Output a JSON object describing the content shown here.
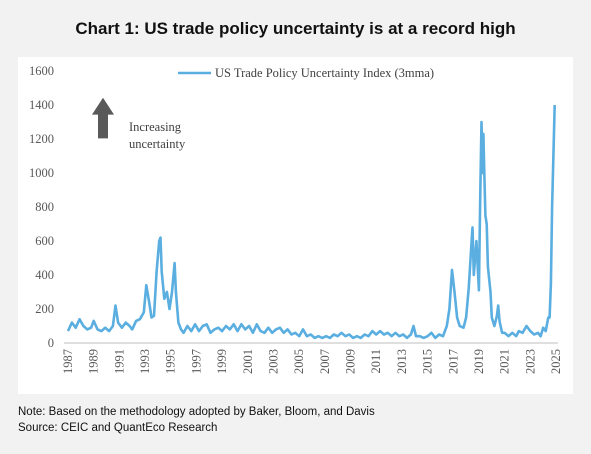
{
  "title": "Chart 1: US trade policy uncertainty is at a record high",
  "notes": {
    "line1": "Note: Based on the methodology adopted by Baker, Bloom, and Davis",
    "line2": "Source: CEIC and QuantEco Research"
  },
  "annotation": {
    "line1": "Increasing",
    "line2": "uncertainty"
  },
  "colors": {
    "series": "#5aaee0",
    "arrow": "#595959",
    "axis": "#bfbfbf",
    "text": "#595959"
  },
  "chart_data": {
    "type": "line",
    "title": "",
    "xlabel": "",
    "ylabel": "",
    "ylim": [
      0,
      1600
    ],
    "xlim": [
      1987,
      2025
    ],
    "grid": false,
    "legend_position": "top-center",
    "y_ticks": [
      "0",
      "200",
      "400",
      "600",
      "800",
      "1000",
      "1200",
      "1400",
      "1600"
    ],
    "x_ticks": [
      "1987",
      "1989",
      "1991",
      "1993",
      "1995",
      "1997",
      "1999",
      "2001",
      "2003",
      "2005",
      "2007",
      "2009",
      "2011",
      "2013",
      "2015",
      "2017",
      "2019",
      "2021",
      "2023",
      "2025"
    ],
    "series": [
      {
        "name": "US Trade Policy Uncertainty Index (3mma)",
        "points": [
          [
            1987.0,
            70
          ],
          [
            1987.3,
            120
          ],
          [
            1987.6,
            90
          ],
          [
            1987.9,
            140
          ],
          [
            1988.2,
            100
          ],
          [
            1988.5,
            80
          ],
          [
            1988.8,
            90
          ],
          [
            1989.0,
            130
          ],
          [
            1989.3,
            80
          ],
          [
            1989.6,
            70
          ],
          [
            1989.9,
            90
          ],
          [
            1990.2,
            70
          ],
          [
            1990.5,
            100
          ],
          [
            1990.7,
            220
          ],
          [
            1990.9,
            120
          ],
          [
            1991.2,
            90
          ],
          [
            1991.5,
            120
          ],
          [
            1991.8,
            100
          ],
          [
            1992.0,
            80
          ],
          [
            1992.3,
            130
          ],
          [
            1992.6,
            140
          ],
          [
            1992.9,
            180
          ],
          [
            1993.1,
            340
          ],
          [
            1993.3,
            250
          ],
          [
            1993.5,
            150
          ],
          [
            1993.7,
            160
          ],
          [
            1993.9,
            420
          ],
          [
            1994.1,
            600
          ],
          [
            1994.2,
            620
          ],
          [
            1994.3,
            420
          ],
          [
            1994.5,
            260
          ],
          [
            1994.7,
            300
          ],
          [
            1994.9,
            200
          ],
          [
            1995.1,
            300
          ],
          [
            1995.3,
            470
          ],
          [
            1995.4,
            300
          ],
          [
            1995.6,
            120
          ],
          [
            1995.8,
            80
          ],
          [
            1996.0,
            60
          ],
          [
            1996.3,
            100
          ],
          [
            1996.6,
            70
          ],
          [
            1996.9,
            110
          ],
          [
            1997.2,
            70
          ],
          [
            1997.5,
            100
          ],
          [
            1997.8,
            110
          ],
          [
            1998.1,
            60
          ],
          [
            1998.4,
            80
          ],
          [
            1998.7,
            90
          ],
          [
            1999.0,
            70
          ],
          [
            1999.3,
            100
          ],
          [
            1999.6,
            80
          ],
          [
            1999.9,
            110
          ],
          [
            2000.2,
            70
          ],
          [
            2000.5,
            110
          ],
          [
            2000.8,
            80
          ],
          [
            2001.1,
            100
          ],
          [
            2001.4,
            60
          ],
          [
            2001.7,
            110
          ],
          [
            2002.0,
            70
          ],
          [
            2002.3,
            60
          ],
          [
            2002.6,
            90
          ],
          [
            2002.9,
            60
          ],
          [
            2003.2,
            80
          ],
          [
            2003.5,
            90
          ],
          [
            2003.8,
            60
          ],
          [
            2004.1,
            80
          ],
          [
            2004.4,
            50
          ],
          [
            2004.7,
            60
          ],
          [
            2005.0,
            40
          ],
          [
            2005.3,
            80
          ],
          [
            2005.6,
            40
          ],
          [
            2005.9,
            50
          ],
          [
            2006.2,
            30
          ],
          [
            2006.5,
            40
          ],
          [
            2006.8,
            30
          ],
          [
            2007.1,
            40
          ],
          [
            2007.4,
            30
          ],
          [
            2007.7,
            50
          ],
          [
            2008.0,
            40
          ],
          [
            2008.3,
            60
          ],
          [
            2008.6,
            40
          ],
          [
            2008.9,
            50
          ],
          [
            2009.2,
            30
          ],
          [
            2009.5,
            40
          ],
          [
            2009.8,
            30
          ],
          [
            2010.1,
            50
          ],
          [
            2010.4,
            40
          ],
          [
            2010.7,
            70
          ],
          [
            2011.0,
            50
          ],
          [
            2011.3,
            70
          ],
          [
            2011.6,
            50
          ],
          [
            2011.9,
            60
          ],
          [
            2012.2,
            40
          ],
          [
            2012.5,
            60
          ],
          [
            2012.8,
            40
          ],
          [
            2013.1,
            50
          ],
          [
            2013.4,
            30
          ],
          [
            2013.7,
            50
          ],
          [
            2013.9,
            100
          ],
          [
            2014.1,
            40
          ],
          [
            2014.4,
            40
          ],
          [
            2014.7,
            30
          ],
          [
            2015.0,
            40
          ],
          [
            2015.3,
            60
          ],
          [
            2015.6,
            30
          ],
          [
            2015.9,
            50
          ],
          [
            2016.2,
            40
          ],
          [
            2016.5,
            100
          ],
          [
            2016.7,
            200
          ],
          [
            2016.9,
            430
          ],
          [
            2017.1,
            300
          ],
          [
            2017.3,
            150
          ],
          [
            2017.5,
            100
          ],
          [
            2017.8,
            90
          ],
          [
            2018.0,
            150
          ],
          [
            2018.2,
            320
          ],
          [
            2018.4,
            560
          ],
          [
            2018.5,
            680
          ],
          [
            2018.6,
            400
          ],
          [
            2018.8,
            600
          ],
          [
            2018.9,
            450
          ],
          [
            2019.0,
            310
          ],
          [
            2019.1,
            850
          ],
          [
            2019.2,
            1300
          ],
          [
            2019.3,
            1000
          ],
          [
            2019.35,
            1230
          ],
          [
            2019.4,
            1050
          ],
          [
            2019.5,
            750
          ],
          [
            2019.6,
            700
          ],
          [
            2019.7,
            450
          ],
          [
            2019.9,
            300
          ],
          [
            2020.0,
            150
          ],
          [
            2020.2,
            100
          ],
          [
            2020.4,
            160
          ],
          [
            2020.5,
            220
          ],
          [
            2020.6,
            130
          ],
          [
            2020.8,
            60
          ],
          [
            2021.0,
            60
          ],
          [
            2021.3,
            40
          ],
          [
            2021.6,
            60
          ],
          [
            2021.9,
            40
          ],
          [
            2022.1,
            70
          ],
          [
            2022.4,
            60
          ],
          [
            2022.7,
            100
          ],
          [
            2023.0,
            70
          ],
          [
            2023.3,
            50
          ],
          [
            2023.6,
            60
          ],
          [
            2023.8,
            40
          ],
          [
            2024.0,
            90
          ],
          [
            2024.2,
            70
          ],
          [
            2024.4,
            150
          ],
          [
            2024.5,
            150
          ],
          [
            2024.6,
            350
          ],
          [
            2024.7,
            800
          ],
          [
            2024.8,
            1100
          ],
          [
            2024.9,
            1400
          ]
        ]
      }
    ]
  }
}
